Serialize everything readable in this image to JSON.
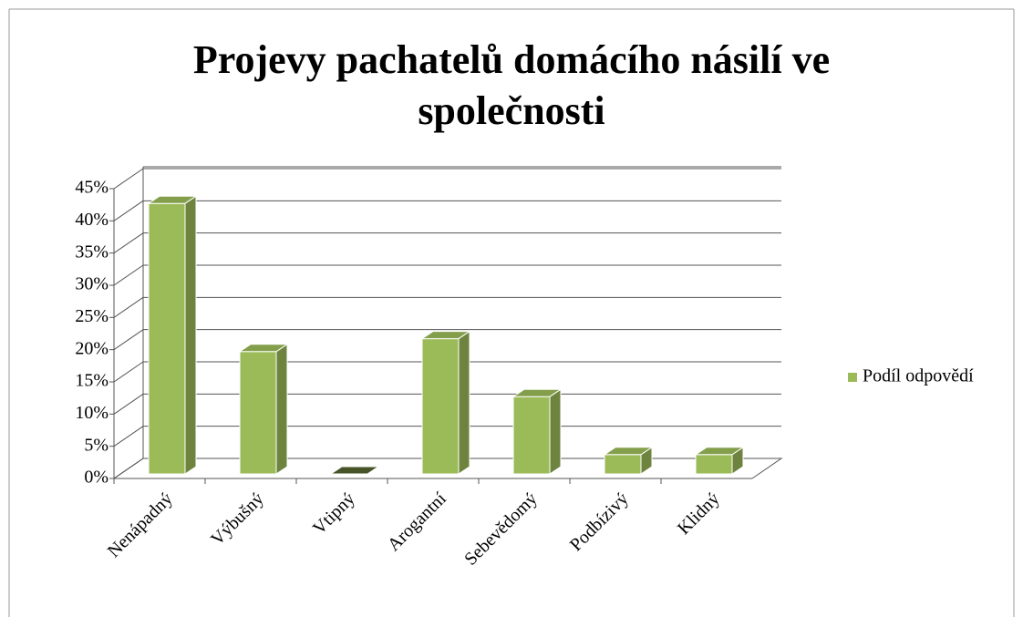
{
  "chart_data": {
    "type": "bar3d",
    "title": "Projevy pachatelů domácího násilí ve společnosti",
    "categories": [
      "Nenápadný",
      "Výbušný",
      "Vtipný",
      "Arogantní",
      "Sebevědomý",
      "Podbízivý",
      "Klidný"
    ],
    "series": [
      {
        "name": "Podíl odpovědí",
        "color": "#9bbb59",
        "values": [
          42,
          19,
          0,
          21,
          12,
          3,
          3
        ]
      }
    ],
    "ylim": [
      0,
      45
    ],
    "yticks": [
      {
        "value": 0,
        "label": "0%"
      },
      {
        "value": 5,
        "label": "5%"
      },
      {
        "value": 10,
        "label": "10%"
      },
      {
        "value": 15,
        "label": "15%"
      },
      {
        "value": 20,
        "label": "20%"
      },
      {
        "value": 25,
        "label": "25%"
      },
      {
        "value": 30,
        "label": "30%"
      },
      {
        "value": 35,
        "label": "35%"
      },
      {
        "value": 40,
        "label": "40%"
      },
      {
        "value": 45,
        "label": "45%"
      }
    ],
    "grid": true,
    "legend": "right"
  }
}
